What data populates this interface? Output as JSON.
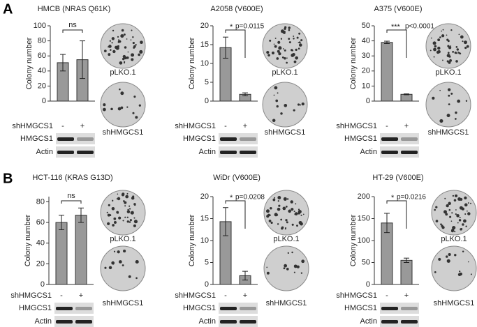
{
  "panel_labels": [
    "A",
    "B"
  ],
  "chart_data": [
    {
      "type": "bar",
      "title": "HMCB (NRAS Q61K)",
      "y_label": "Colony number",
      "categories": [
        "-",
        "+"
      ],
      "values": [
        51,
        55
      ],
      "errors": [
        11,
        25
      ],
      "ylim": [
        0,
        100
      ],
      "yticks": [
        0,
        20,
        40,
        60,
        80,
        100
      ],
      "color": "#999999",
      "row_label": "shHMGCS1",
      "annotation": "ns",
      "images": [
        "pLKO.1",
        "shHMGCS1"
      ],
      "blots": [
        "HMGCS1",
        "Actin"
      ]
    },
    {
      "type": "bar",
      "title": "A2058 (V600E)",
      "y_label": "Colony number",
      "categories": [
        "-",
        "+"
      ],
      "values": [
        14.2,
        1.8
      ],
      "errors": [
        2.8,
        0.4
      ],
      "ylim": [
        0,
        20
      ],
      "yticks": [
        0,
        5,
        10,
        15,
        20
      ],
      "color": "#999999",
      "row_label": "shHMGCS1",
      "stars": "*",
      "annotation": "p=0.0115",
      "images": [
        "pLKO.1",
        "shHMGCS1"
      ],
      "blots": [
        "HMGCS1",
        "Actin"
      ]
    },
    {
      "type": "bar",
      "title": "A375 (V600E)",
      "y_label": "Colony number",
      "categories": [
        "-",
        "+"
      ],
      "values": [
        39,
        4.5
      ],
      "errors": [
        0.8,
        0.3
      ],
      "ylim": [
        0,
        50
      ],
      "yticks": [
        0,
        10,
        20,
        30,
        40,
        50
      ],
      "color": "#999999",
      "row_label": "shHMGCS1",
      "stars": "***",
      "annotation": "p<0.0001",
      "images": [
        "pLKO.1",
        "shHMGCS1"
      ],
      "blots": [
        "HMGCS1",
        "Actin"
      ]
    },
    {
      "type": "bar",
      "title": "HCT-116 (KRAS G13D)",
      "y_label": "Colony number",
      "categories": [
        "-",
        "+"
      ],
      "values": [
        60,
        67
      ],
      "errors": [
        7,
        7
      ],
      "ylim": [
        0,
        85
      ],
      "yticks": [
        0,
        20,
        40,
        60,
        80
      ],
      "color": "#999999",
      "row_label": "shHMGCS1",
      "annotation": "ns",
      "images": [
        "pLKO.1",
        "shHMGCS1"
      ],
      "blots": [
        "HMGCS1",
        "Actin"
      ]
    },
    {
      "type": "bar",
      "title": "WiDr (V600E)",
      "y_label": "Colony number",
      "categories": [
        "-",
        "+"
      ],
      "values": [
        14.3,
        2
      ],
      "errors": [
        3.2,
        1
      ],
      "ylim": [
        0,
        20
      ],
      "yticks": [
        0,
        5,
        10,
        15,
        20
      ],
      "color": "#999999",
      "row_label": "shHMGCS1",
      "stars": "*",
      "annotation": "p=0.0208",
      "images": [
        "pLKO.1",
        "shHMGCS1"
      ],
      "blots": [
        "HMGCS1",
        "Actin"
      ]
    },
    {
      "type": "bar",
      "title": "HT-29 (V600E)",
      "y_label": "Colony number",
      "categories": [
        "-",
        "+"
      ],
      "values": [
        140,
        55
      ],
      "errors": [
        22,
        5
      ],
      "ylim": [
        0,
        200
      ],
      "yticks": [
        0,
        50,
        100,
        150,
        200
      ],
      "color": "#999999",
      "row_label": "shHMGCS1",
      "stars": "*",
      "annotation": "p=0.0216",
      "images": [
        "pLKO.1",
        "shHMGCS1"
      ],
      "blots": [
        "HMGCS1",
        "Actin"
      ]
    }
  ]
}
